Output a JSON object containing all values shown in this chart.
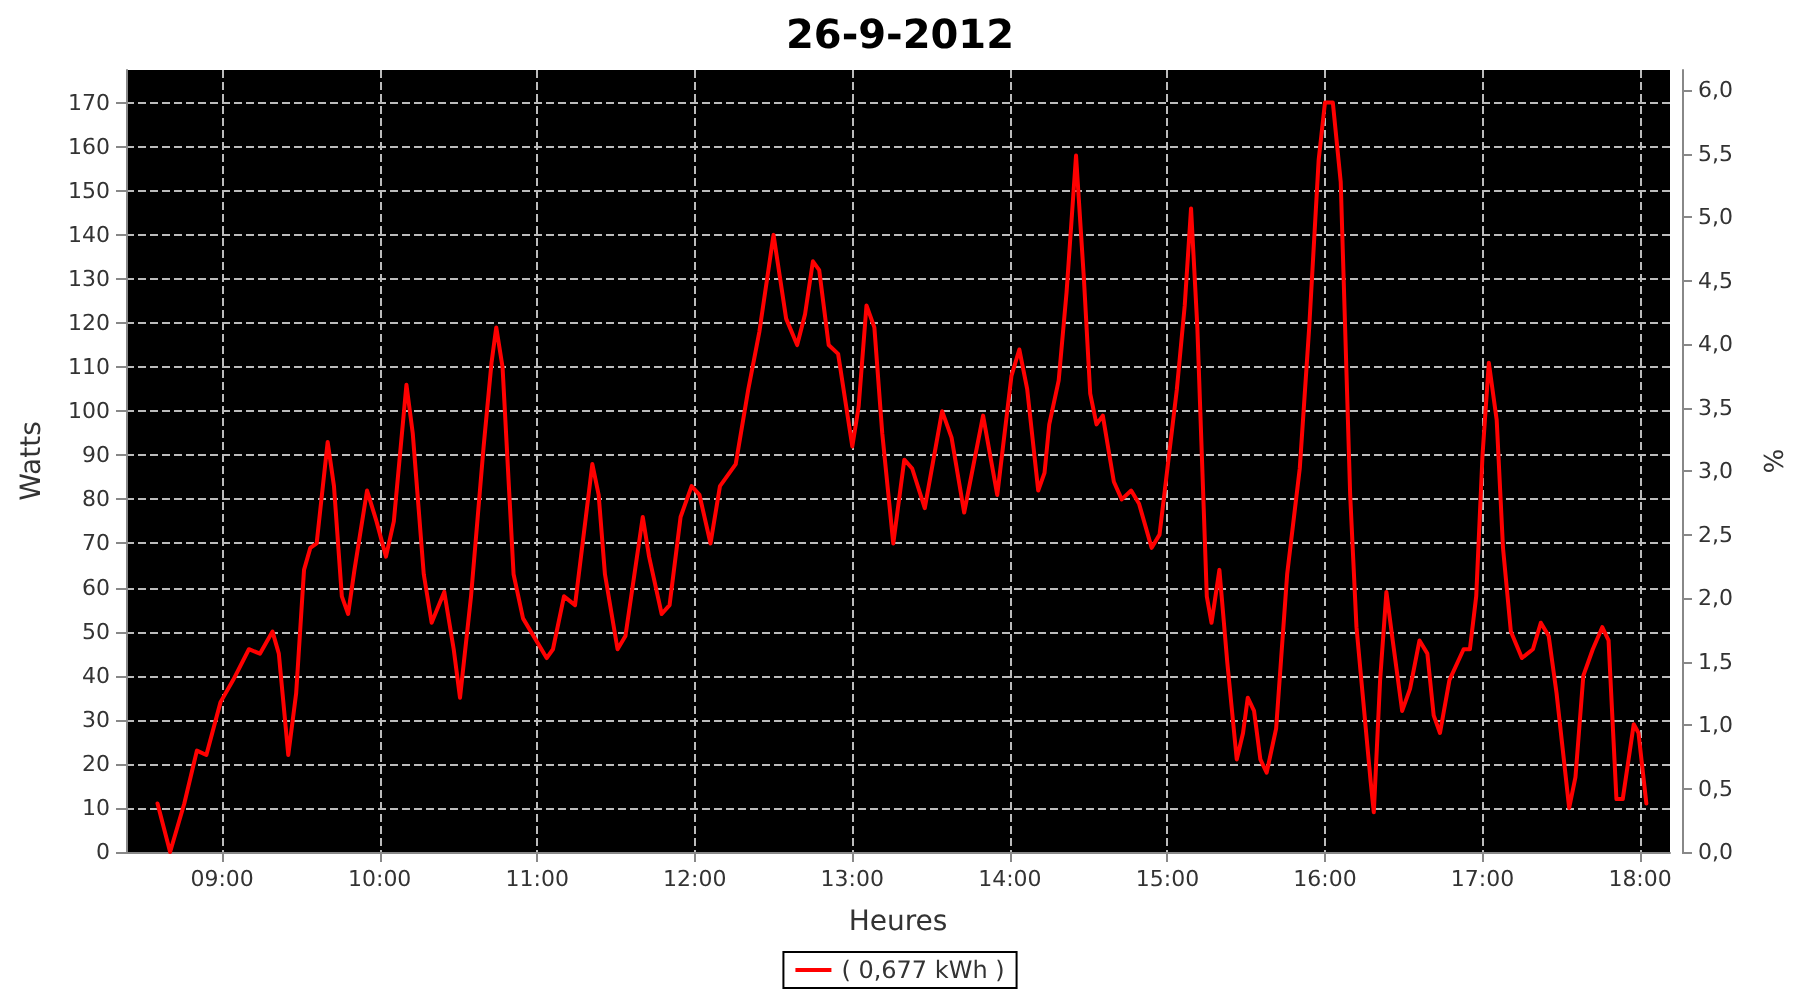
{
  "chart_data": {
    "type": "line",
    "title": "26-9-2012",
    "xlabel": "Heures",
    "ylabel": "Watts",
    "y2label": "%",
    "xlim": [
      8.39,
      18.19
    ],
    "xticks": [
      {
        "value": 9,
        "label": "09:00"
      },
      {
        "value": 10,
        "label": "10:00"
      },
      {
        "value": 11,
        "label": "11:00"
      },
      {
        "value": 12,
        "label": "12:00"
      },
      {
        "value": 13,
        "label": "13:00"
      },
      {
        "value": 14,
        "label": "14:00"
      },
      {
        "value": 15,
        "label": "15:00"
      },
      {
        "value": 16,
        "label": "16:00"
      },
      {
        "value": 17,
        "label": "17:00"
      },
      {
        "value": 18,
        "label": "18:00"
      }
    ],
    "ylim": [
      0,
      177.4
    ],
    "yticks": [
      0,
      10,
      20,
      30,
      40,
      50,
      60,
      70,
      80,
      90,
      100,
      110,
      120,
      130,
      140,
      150,
      160,
      170
    ],
    "y2lim": [
      0,
      6.16
    ],
    "y2ticks": [
      {
        "value": 0,
        "label": "0,0"
      },
      {
        "value": 0.5,
        "label": "0,5"
      },
      {
        "value": 1,
        "label": "1,0"
      },
      {
        "value": 1.5,
        "label": "1,5"
      },
      {
        "value": 2,
        "label": "2,0"
      },
      {
        "value": 2.5,
        "label": "2,5"
      },
      {
        "value": 3,
        "label": "3,0"
      },
      {
        "value": 3.5,
        "label": "3,5"
      },
      {
        "value": 4,
        "label": "4,0"
      },
      {
        "value": 4.5,
        "label": "4,5"
      },
      {
        "value": 5,
        "label": "5,0"
      },
      {
        "value": 5.5,
        "label": "5,5"
      },
      {
        "value": 6,
        "label": "6,0"
      }
    ],
    "grid": true,
    "legend": "bottom",
    "marker": "none",
    "line_style": "solid",
    "series": [
      {
        "name": "( 0,677 kWh )",
        "color": "#ff0000",
        "x": [
          8.59,
          8.67,
          8.76,
          8.84,
          8.9,
          8.99,
          9.07,
          9.17,
          9.24,
          9.32,
          9.36,
          9.42,
          9.47,
          9.52,
          9.56,
          9.6,
          9.67,
          9.71,
          9.76,
          9.8,
          9.84,
          9.92,
          9.98,
          10.04,
          10.09,
          10.17,
          10.21,
          10.28,
          10.33,
          10.41,
          10.47,
          10.51,
          10.58,
          10.66,
          10.71,
          10.74,
          10.78,
          10.85,
          10.91,
          11.06,
          11.1,
          11.17,
          11.24,
          11.35,
          11.39,
          11.43,
          11.51,
          11.56,
          11.67,
          11.71,
          11.79,
          11.84,
          11.91,
          11.98,
          12.03,
          12.1,
          12.16,
          12.26,
          12.34,
          12.41,
          12.5,
          12.58,
          12.65,
          12.7,
          12.75,
          12.79,
          12.85,
          12.91,
          13.0,
          13.04,
          13.09,
          13.14,
          13.19,
          13.26,
          13.33,
          13.38,
          13.46,
          13.57,
          13.63,
          13.71,
          13.83,
          13.92,
          14.01,
          14.06,
          14.11,
          14.18,
          14.22,
          14.25,
          14.31,
          14.36,
          14.42,
          14.47,
          14.51,
          14.55,
          14.59,
          14.66,
          14.71,
          14.77,
          14.82,
          14.9,
          14.95,
          15.0,
          15.06,
          15.11,
          15.15,
          15.19,
          15.25,
          15.28,
          15.33,
          15.38,
          15.44,
          15.48,
          15.51,
          15.55,
          15.59,
          15.63,
          15.69,
          15.76,
          15.84,
          15.9,
          15.96,
          16.0,
          16.05,
          16.1,
          16.16,
          16.2,
          16.29,
          16.31,
          16.35,
          16.39,
          16.43,
          16.49,
          16.54,
          16.6,
          16.65,
          16.69,
          16.73,
          16.79,
          16.88,
          16.92,
          16.96,
          17.0,
          17.04,
          17.09,
          17.13,
          17.18,
          17.25,
          17.32,
          17.37,
          17.42,
          17.47,
          17.55,
          17.59,
          17.64,
          17.7,
          17.76,
          17.8,
          17.85,
          17.89,
          17.96,
          17.99,
          18.04
        ],
        "values": [
          11,
          0,
          11,
          23,
          22,
          34,
          39,
          46,
          45,
          50,
          45,
          22,
          36,
          64,
          69,
          70,
          93,
          83,
          58,
          54,
          64,
          82,
          75,
          67,
          75,
          106,
          95,
          63,
          52,
          59,
          46,
          35,
          58,
          92,
          111,
          119,
          110,
          63,
          53,
          44,
          46,
          58,
          56,
          88,
          81,
          63,
          46,
          49,
          76,
          67,
          54,
          56,
          76,
          83,
          81,
          70,
          83,
          88,
          105,
          118,
          140,
          121,
          115,
          122,
          134,
          132,
          115,
          113,
          92,
          101,
          124,
          119,
          95,
          70,
          89,
          87,
          78,
          100,
          94,
          77,
          99,
          81,
          108,
          114,
          105,
          82,
          86,
          97,
          107,
          127,
          158,
          130,
          104,
          97,
          99,
          84,
          80,
          82,
          79,
          69,
          72,
          87,
          105,
          124,
          146,
          119,
          58,
          52,
          64,
          43,
          21,
          27,
          35,
          32,
          21,
          18,
          28,
          63,
          87,
          119,
          157,
          170,
          170,
          152,
          81,
          51,
          16,
          9,
          39,
          59,
          48,
          32,
          37,
          48,
          45,
          31,
          27,
          39,
          46,
          46,
          58,
          90,
          111,
          98,
          69,
          50,
          44,
          46,
          52,
          49,
          36,
          10,
          17,
          40,
          46,
          51,
          48,
          12,
          12,
          29,
          27,
          11
        ]
      }
    ]
  }
}
